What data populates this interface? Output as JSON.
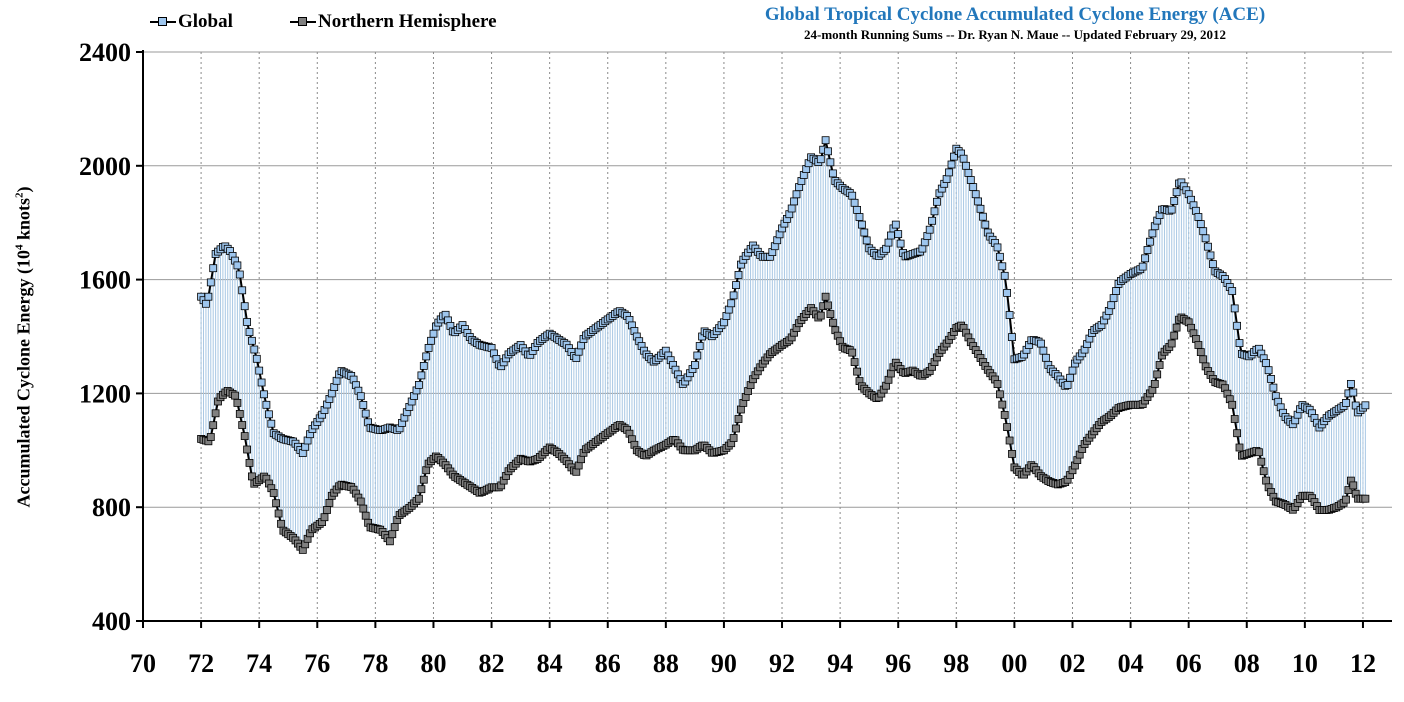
{
  "chart_data": {
    "type": "line",
    "title": "Global Tropical Cyclone Accumulated Cyclone Energy (ACE)",
    "subtitle": "24-month Running Sums -- Dr. Ryan N. Maue -- Updated February 29, 2012",
    "ylabel_main": "Accumulated Cyclone Energy (10",
    "ylabel_sup1": "4",
    "ylabel_mid": " knots",
    "ylabel_sup2": "2",
    "ylabel_end": ")",
    "ylim": [
      400,
      2400
    ],
    "yticks": [
      400,
      800,
      1200,
      1600,
      2000,
      2400
    ],
    "xlim": [
      1970,
      2013
    ],
    "xticks": [
      1970,
      1972,
      1974,
      1976,
      1978,
      1980,
      1982,
      1984,
      1986,
      1988,
      1990,
      1992,
      1994,
      1996,
      1998,
      2000,
      2002,
      2004,
      2006,
      2008,
      2010,
      2012
    ],
    "xtick_labels": [
      "70",
      "72",
      "74",
      "76",
      "78",
      "80",
      "82",
      "84",
      "86",
      "88",
      "90",
      "92",
      "94",
      "96",
      "98",
      "00",
      "02",
      "04",
      "06",
      "08",
      "10",
      "12"
    ],
    "grid": {
      "horizontal": true,
      "vertical": true,
      "vertical_style": "dotted"
    },
    "legend_placement": "top-left",
    "time_step": "monthly",
    "series": [
      {
        "name": "Global",
        "color": "#9ec6ee",
        "knots": [
          [
            1972.0,
            1540
          ],
          [
            1972.2,
            1510
          ],
          [
            1972.5,
            1690
          ],
          [
            1972.8,
            1720
          ],
          [
            1973.0,
            1700
          ],
          [
            1973.3,
            1640
          ],
          [
            1973.6,
            1440
          ],
          [
            1973.9,
            1330
          ],
          [
            1974.2,
            1180
          ],
          [
            1974.5,
            1060
          ],
          [
            1974.8,
            1040
          ],
          [
            1975.2,
            1030
          ],
          [
            1975.5,
            990
          ],
          [
            1975.8,
            1070
          ],
          [
            1976.2,
            1130
          ],
          [
            1976.5,
            1200
          ],
          [
            1976.8,
            1280
          ],
          [
            1977.2,
            1260
          ],
          [
            1977.5,
            1190
          ],
          [
            1977.8,
            1080
          ],
          [
            1978.2,
            1070
          ],
          [
            1978.5,
            1080
          ],
          [
            1978.8,
            1070
          ],
          [
            1979.2,
            1160
          ],
          [
            1979.5,
            1230
          ],
          [
            1979.8,
            1350
          ],
          [
            1980.1,
            1440
          ],
          [
            1980.4,
            1480
          ],
          [
            1980.7,
            1410
          ],
          [
            1981.0,
            1440
          ],
          [
            1981.3,
            1390
          ],
          [
            1981.6,
            1370
          ],
          [
            1982.0,
            1360
          ],
          [
            1982.3,
            1290
          ],
          [
            1982.6,
            1340
          ],
          [
            1983.0,
            1370
          ],
          [
            1983.3,
            1330
          ],
          [
            1983.6,
            1380
          ],
          [
            1984.0,
            1410
          ],
          [
            1984.3,
            1390
          ],
          [
            1984.6,
            1370
          ],
          [
            1984.9,
            1320
          ],
          [
            1985.2,
            1400
          ],
          [
            1985.6,
            1430
          ],
          [
            1986.0,
            1460
          ],
          [
            1986.4,
            1490
          ],
          [
            1986.7,
            1470
          ],
          [
            1987.0,
            1400
          ],
          [
            1987.3,
            1340
          ],
          [
            1987.6,
            1310
          ],
          [
            1988.0,
            1350
          ],
          [
            1988.3,
            1290
          ],
          [
            1988.6,
            1230
          ],
          [
            1989.0,
            1300
          ],
          [
            1989.3,
            1420
          ],
          [
            1989.6,
            1400
          ],
          [
            1990.0,
            1450
          ],
          [
            1990.3,
            1530
          ],
          [
            1990.6,
            1660
          ],
          [
            1991.0,
            1720
          ],
          [
            1991.3,
            1680
          ],
          [
            1991.6,
            1680
          ],
          [
            1992.0,
            1780
          ],
          [
            1992.3,
            1840
          ],
          [
            1992.6,
            1930
          ],
          [
            1993.0,
            2030
          ],
          [
            1993.3,
            2010
          ],
          [
            1993.5,
            2090
          ],
          [
            1993.8,
            1950
          ],
          [
            1994.1,
            1920
          ],
          [
            1994.4,
            1900
          ],
          [
            1994.7,
            1810
          ],
          [
            1995.0,
            1710
          ],
          [
            1995.3,
            1680
          ],
          [
            1995.6,
            1710
          ],
          [
            1995.9,
            1800
          ],
          [
            1996.2,
            1680
          ],
          [
            1996.5,
            1690
          ],
          [
            1996.8,
            1700
          ],
          [
            1997.1,
            1780
          ],
          [
            1997.4,
            1900
          ],
          [
            1997.7,
            1960
          ],
          [
            1998.0,
            2060
          ],
          [
            1998.2,
            2040
          ],
          [
            1998.5,
            1950
          ],
          [
            1998.8,
            1860
          ],
          [
            1999.1,
            1760
          ],
          [
            1999.4,
            1720
          ],
          [
            1999.7,
            1600
          ],
          [
            2000.0,
            1320
          ],
          [
            2000.3,
            1330
          ],
          [
            2000.6,
            1390
          ],
          [
            2000.9,
            1380
          ],
          [
            2001.2,
            1290
          ],
          [
            2001.5,
            1260
          ],
          [
            2001.8,
            1220
          ],
          [
            2002.1,
            1310
          ],
          [
            2002.4,
            1350
          ],
          [
            2002.7,
            1420
          ],
          [
            2003.0,
            1440
          ],
          [
            2003.3,
            1500
          ],
          [
            2003.6,
            1590
          ],
          [
            2004.0,
            1620
          ],
          [
            2004.4,
            1640
          ],
          [
            2004.8,
            1780
          ],
          [
            2005.1,
            1850
          ],
          [
            2005.4,
            1840
          ],
          [
            2005.7,
            1950
          ],
          [
            2006.0,
            1900
          ],
          [
            2006.3,
            1830
          ],
          [
            2006.6,
            1740
          ],
          [
            2006.9,
            1630
          ],
          [
            2007.2,
            1610
          ],
          [
            2007.5,
            1560
          ],
          [
            2007.8,
            1340
          ],
          [
            2008.1,
            1330
          ],
          [
            2008.4,
            1360
          ],
          [
            2008.7,
            1300
          ],
          [
            2009.0,
            1190
          ],
          [
            2009.3,
            1120
          ],
          [
            2009.6,
            1090
          ],
          [
            2009.9,
            1160
          ],
          [
            2010.2,
            1140
          ],
          [
            2010.5,
            1080
          ],
          [
            2010.8,
            1120
          ],
          [
            2011.1,
            1140
          ],
          [
            2011.4,
            1160
          ],
          [
            2011.6,
            1240
          ],
          [
            2011.8,
            1130
          ],
          [
            2012.1,
            1160
          ]
        ]
      },
      {
        "name": "Northern Hemisphere",
        "color": "#808080",
        "knots": [
          [
            1972.0,
            1040
          ],
          [
            1972.3,
            1030
          ],
          [
            1972.6,
            1180
          ],
          [
            1972.9,
            1210
          ],
          [
            1973.2,
            1190
          ],
          [
            1973.5,
            1050
          ],
          [
            1973.8,
            880
          ],
          [
            1974.2,
            910
          ],
          [
            1974.5,
            850
          ],
          [
            1974.8,
            720
          ],
          [
            1975.2,
            690
          ],
          [
            1975.5,
            650
          ],
          [
            1975.8,
            720
          ],
          [
            1976.2,
            750
          ],
          [
            1976.5,
            840
          ],
          [
            1976.8,
            880
          ],
          [
            1977.2,
            870
          ],
          [
            1977.5,
            820
          ],
          [
            1977.8,
            730
          ],
          [
            1978.2,
            720
          ],
          [
            1978.5,
            680
          ],
          [
            1978.8,
            770
          ],
          [
            1979.2,
            800
          ],
          [
            1979.5,
            830
          ],
          [
            1979.8,
            950
          ],
          [
            1980.1,
            980
          ],
          [
            1980.4,
            950
          ],
          [
            1980.7,
            910
          ],
          [
            1981.0,
            890
          ],
          [
            1981.3,
            870
          ],
          [
            1981.6,
            850
          ],
          [
            1982.0,
            870
          ],
          [
            1982.3,
            870
          ],
          [
            1982.6,
            930
          ],
          [
            1983.0,
            970
          ],
          [
            1983.3,
            960
          ],
          [
            1983.6,
            970
          ],
          [
            1984.0,
            1010
          ],
          [
            1984.3,
            990
          ],
          [
            1984.6,
            960
          ],
          [
            1984.9,
            920
          ],
          [
            1985.2,
            1000
          ],
          [
            1985.6,
            1030
          ],
          [
            1986.0,
            1060
          ],
          [
            1986.4,
            1090
          ],
          [
            1986.7,
            1070
          ],
          [
            1987.0,
            1000
          ],
          [
            1987.3,
            980
          ],
          [
            1987.6,
            1000
          ],
          [
            1988.0,
            1020
          ],
          [
            1988.3,
            1040
          ],
          [
            1988.6,
            1000
          ],
          [
            1989.0,
            1000
          ],
          [
            1989.3,
            1020
          ],
          [
            1989.6,
            990
          ],
          [
            1990.0,
            1000
          ],
          [
            1990.3,
            1030
          ],
          [
            1990.6,
            1150
          ],
          [
            1991.0,
            1250
          ],
          [
            1991.3,
            1300
          ],
          [
            1991.6,
            1340
          ],
          [
            1992.0,
            1370
          ],
          [
            1992.3,
            1390
          ],
          [
            1992.6,
            1450
          ],
          [
            1993.0,
            1500
          ],
          [
            1993.3,
            1460
          ],
          [
            1993.5,
            1540
          ],
          [
            1993.8,
            1430
          ],
          [
            1994.1,
            1360
          ],
          [
            1994.4,
            1350
          ],
          [
            1994.7,
            1230
          ],
          [
            1995.0,
            1200
          ],
          [
            1995.3,
            1180
          ],
          [
            1995.6,
            1230
          ],
          [
            1995.9,
            1310
          ],
          [
            1996.2,
            1270
          ],
          [
            1996.5,
            1280
          ],
          [
            1996.8,
            1260
          ],
          [
            1997.1,
            1280
          ],
          [
            1997.4,
            1340
          ],
          [
            1997.7,
            1380
          ],
          [
            1998.0,
            1430
          ],
          [
            1998.2,
            1440
          ],
          [
            1998.5,
            1380
          ],
          [
            1998.8,
            1330
          ],
          [
            1999.1,
            1280
          ],
          [
            1999.4,
            1240
          ],
          [
            1999.7,
            1110
          ],
          [
            2000.0,
            940
          ],
          [
            2000.3,
            910
          ],
          [
            2000.6,
            950
          ],
          [
            2000.9,
            910
          ],
          [
            2001.2,
            890
          ],
          [
            2001.5,
            880
          ],
          [
            2001.8,
            890
          ],
          [
            2002.1,
            950
          ],
          [
            2002.4,
            1020
          ],
          [
            2002.7,
            1060
          ],
          [
            2003.0,
            1100
          ],
          [
            2003.3,
            1120
          ],
          [
            2003.6,
            1150
          ],
          [
            2004.0,
            1160
          ],
          [
            2004.4,
            1160
          ],
          [
            2004.8,
            1220
          ],
          [
            2005.1,
            1340
          ],
          [
            2005.4,
            1370
          ],
          [
            2005.7,
            1470
          ],
          [
            2006.0,
            1450
          ],
          [
            2006.3,
            1380
          ],
          [
            2006.6,
            1290
          ],
          [
            2006.9,
            1240
          ],
          [
            2007.2,
            1230
          ],
          [
            2007.5,
            1160
          ],
          [
            2007.8,
            980
          ],
          [
            2008.1,
            990
          ],
          [
            2008.4,
            1000
          ],
          [
            2008.7,
            880
          ],
          [
            2009.0,
            820
          ],
          [
            2009.3,
            810
          ],
          [
            2009.6,
            790
          ],
          [
            2009.9,
            840
          ],
          [
            2010.2,
            840
          ],
          [
            2010.5,
            790
          ],
          [
            2010.8,
            790
          ],
          [
            2011.1,
            800
          ],
          [
            2011.4,
            820
          ],
          [
            2011.6,
            900
          ],
          [
            2011.8,
            830
          ],
          [
            2012.1,
            830
          ]
        ]
      }
    ]
  }
}
